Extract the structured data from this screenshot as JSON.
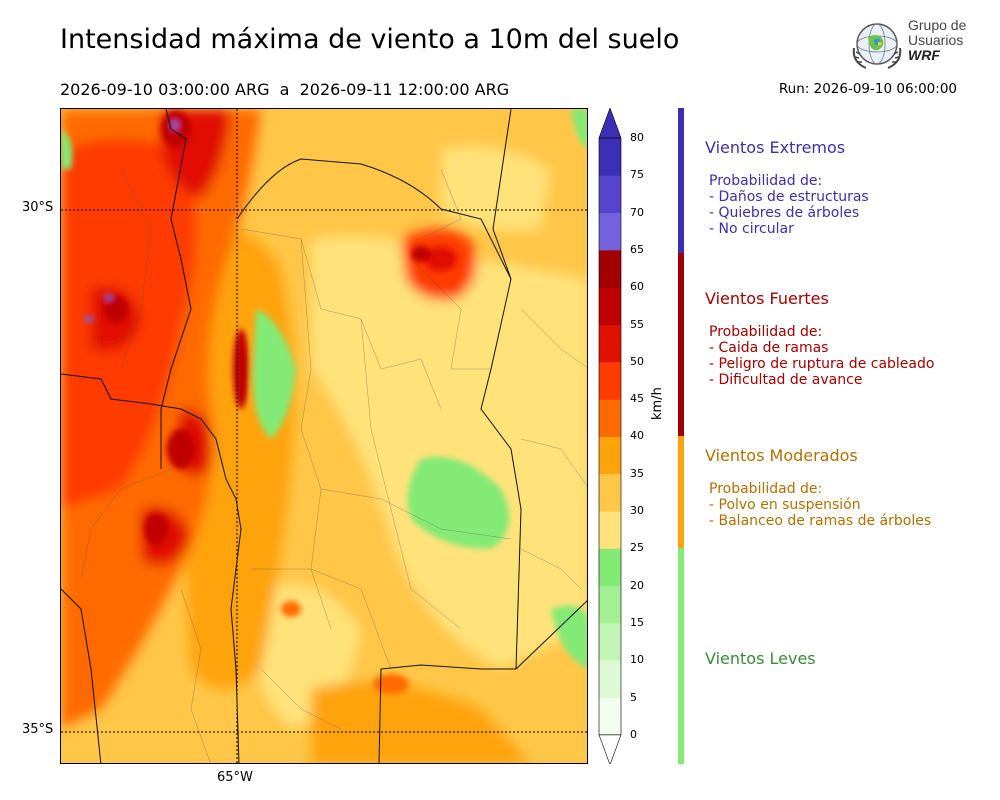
{
  "header": {
    "title": "Intensidad máxima de viento a 10m del suelo",
    "period": "2026-09-10 03:00:00 ARG  a  2026-09-11 12:00:00 ARG",
    "run": "Run: 2026-09-10 06:00:00"
  },
  "logo": {
    "line1": "Grupo de",
    "line2": "Usuarios",
    "line3": "WRF"
  },
  "map": {
    "lat_labels": [
      "30°S",
      "35°S"
    ],
    "lon_labels": [
      "65°W"
    ]
  },
  "colorbar": {
    "unit": "km/h",
    "ticks": [
      "0",
      "5",
      "10",
      "15",
      "20",
      "25",
      "30",
      "35",
      "40",
      "45",
      "50",
      "55",
      "60",
      "65",
      "70",
      "75",
      "80"
    ],
    "colors": [
      "#f2fcef",
      "#ddf9d6",
      "#c2f4b6",
      "#a3ef94",
      "#83ea74",
      "#ffe27a",
      "#ffc648",
      "#ffa30d",
      "#ff6a00",
      "#ff3b00",
      "#e01100",
      "#bf0000",
      "#a00000",
      "#7462dc",
      "#5744cc",
      "#3d2fb5"
    ]
  },
  "categories": [
    {
      "title": "Vientos Extremos",
      "color": "#3d2fa8",
      "desc": [
        "Probabilidad de:",
        "- Daños de estructuras",
        "- Quiebres de árboles",
        "- No circular"
      ]
    },
    {
      "title": "Vientos Fuertes",
      "color": "#a00000",
      "desc": [
        "Probabilidad de:",
        "- Caida de ramas",
        "- Peligro de ruptura de cableado",
        "- Dificultad de avance"
      ]
    },
    {
      "title": "Vientos Moderados",
      "color": "#b07000",
      "desc": [
        "Probabilidad de:",
        "- Polvo en suspensión",
        "- Balanceo de ramas de árboles"
      ]
    },
    {
      "title": "Vientos Leves",
      "color": "#3a8a3a",
      "desc": []
    }
  ],
  "bar_colors": {
    "extremos": "#3d2fb5",
    "fuertes": "#a00000",
    "moderados": "#ffa30d",
    "leves": "#83ea74"
  }
}
